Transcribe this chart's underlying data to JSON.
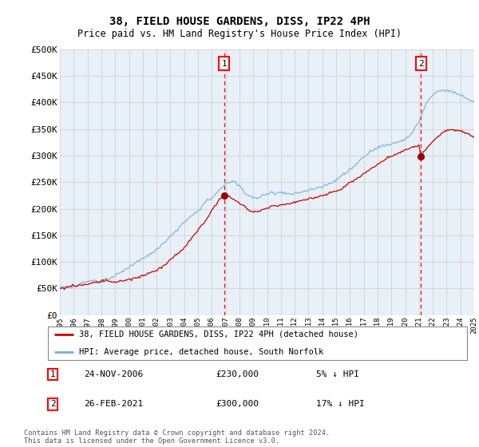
{
  "title": "38, FIELD HOUSE GARDENS, DISS, IP22 4PH",
  "subtitle": "Price paid vs. HM Land Registry's House Price Index (HPI)",
  "legend_line1": "38, FIELD HOUSE GARDENS, DISS, IP22 4PH (detached house)",
  "legend_line2": "HPI: Average price, detached house, South Norfolk",
  "transaction1_date": "24-NOV-2006",
  "transaction1_price": "£230,000",
  "transaction1_hpi": "5% ↓ HPI",
  "transaction1_year": 2006.9,
  "transaction1_value": 230000,
  "transaction2_date": "26-FEB-2021",
  "transaction2_price": "£300,000",
  "transaction2_hpi": "17% ↓ HPI",
  "transaction2_year": 2021.15,
  "transaction2_value": 300000,
  "footer": "Contains HM Land Registry data © Crown copyright and database right 2024.\nThis data is licensed under the Open Government Licence v3.0.",
  "line_red_color": "#cc0000",
  "line_blue_color": "#7ab0d4",
  "grid_color": "#cccccc",
  "chart_bg": "#e8f0f8",
  "ylim": [
    0,
    500000
  ],
  "yticks": [
    0,
    50000,
    100000,
    150000,
    200000,
    250000,
    300000,
    350000,
    400000,
    450000,
    500000
  ],
  "xstart": 1995,
  "xend": 2025
}
